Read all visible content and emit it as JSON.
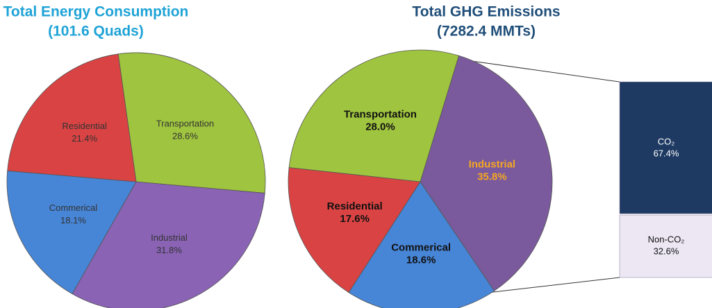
{
  "chart_data": [
    {
      "type": "pie",
      "title": "Total Energy Consumption",
      "subtitle": "(101.6 Quads)",
      "title_color": "#1fa3d6",
      "categories": [
        "Transportation",
        "Industrial",
        "Commerical",
        "Residential"
      ],
      "values": [
        28.6,
        31.8,
        18.1,
        21.4
      ],
      "value_labels": [
        "28.6%",
        "31.8%",
        "18.1%",
        "21.4%"
      ],
      "colors": [
        "#9fc43f",
        "#8a63b5",
        "#4785d6",
        "#d94343"
      ],
      "label_colors": [
        "#333333",
        "#333333",
        "#333333",
        "#333333"
      ]
    },
    {
      "type": "pie",
      "title": "Total GHG Emissions",
      "subtitle": "(7282.4 MMTs)",
      "title_color": "#1f4e79",
      "categories": [
        "Industrial",
        "Commerical",
        "Residential",
        "Transportation"
      ],
      "values": [
        35.8,
        18.6,
        17.6,
        28.0
      ],
      "value_labels": [
        "35.8%",
        "18.6%",
        "17.6%",
        "28.0%"
      ],
      "colors": [
        "#7a5a9c",
        "#4785d6",
        "#d94343",
        "#9fc43f"
      ],
      "label_colors": [
        "#f5a623",
        "#111111",
        "#111111",
        "#111111"
      ]
    },
    {
      "type": "bar",
      "stacked": true,
      "series": [
        {
          "name": "CO₂",
          "color": "#1e3a63",
          "label_color": "#ffffff",
          "values": [
            67.4
          ],
          "value_labels": [
            "67.4%"
          ]
        },
        {
          "name": "Non-CO₂",
          "color": "#ece7f3",
          "label_color": "#111111",
          "values": [
            32.6
          ],
          "value_labels": [
            "32.6%"
          ]
        }
      ]
    }
  ]
}
